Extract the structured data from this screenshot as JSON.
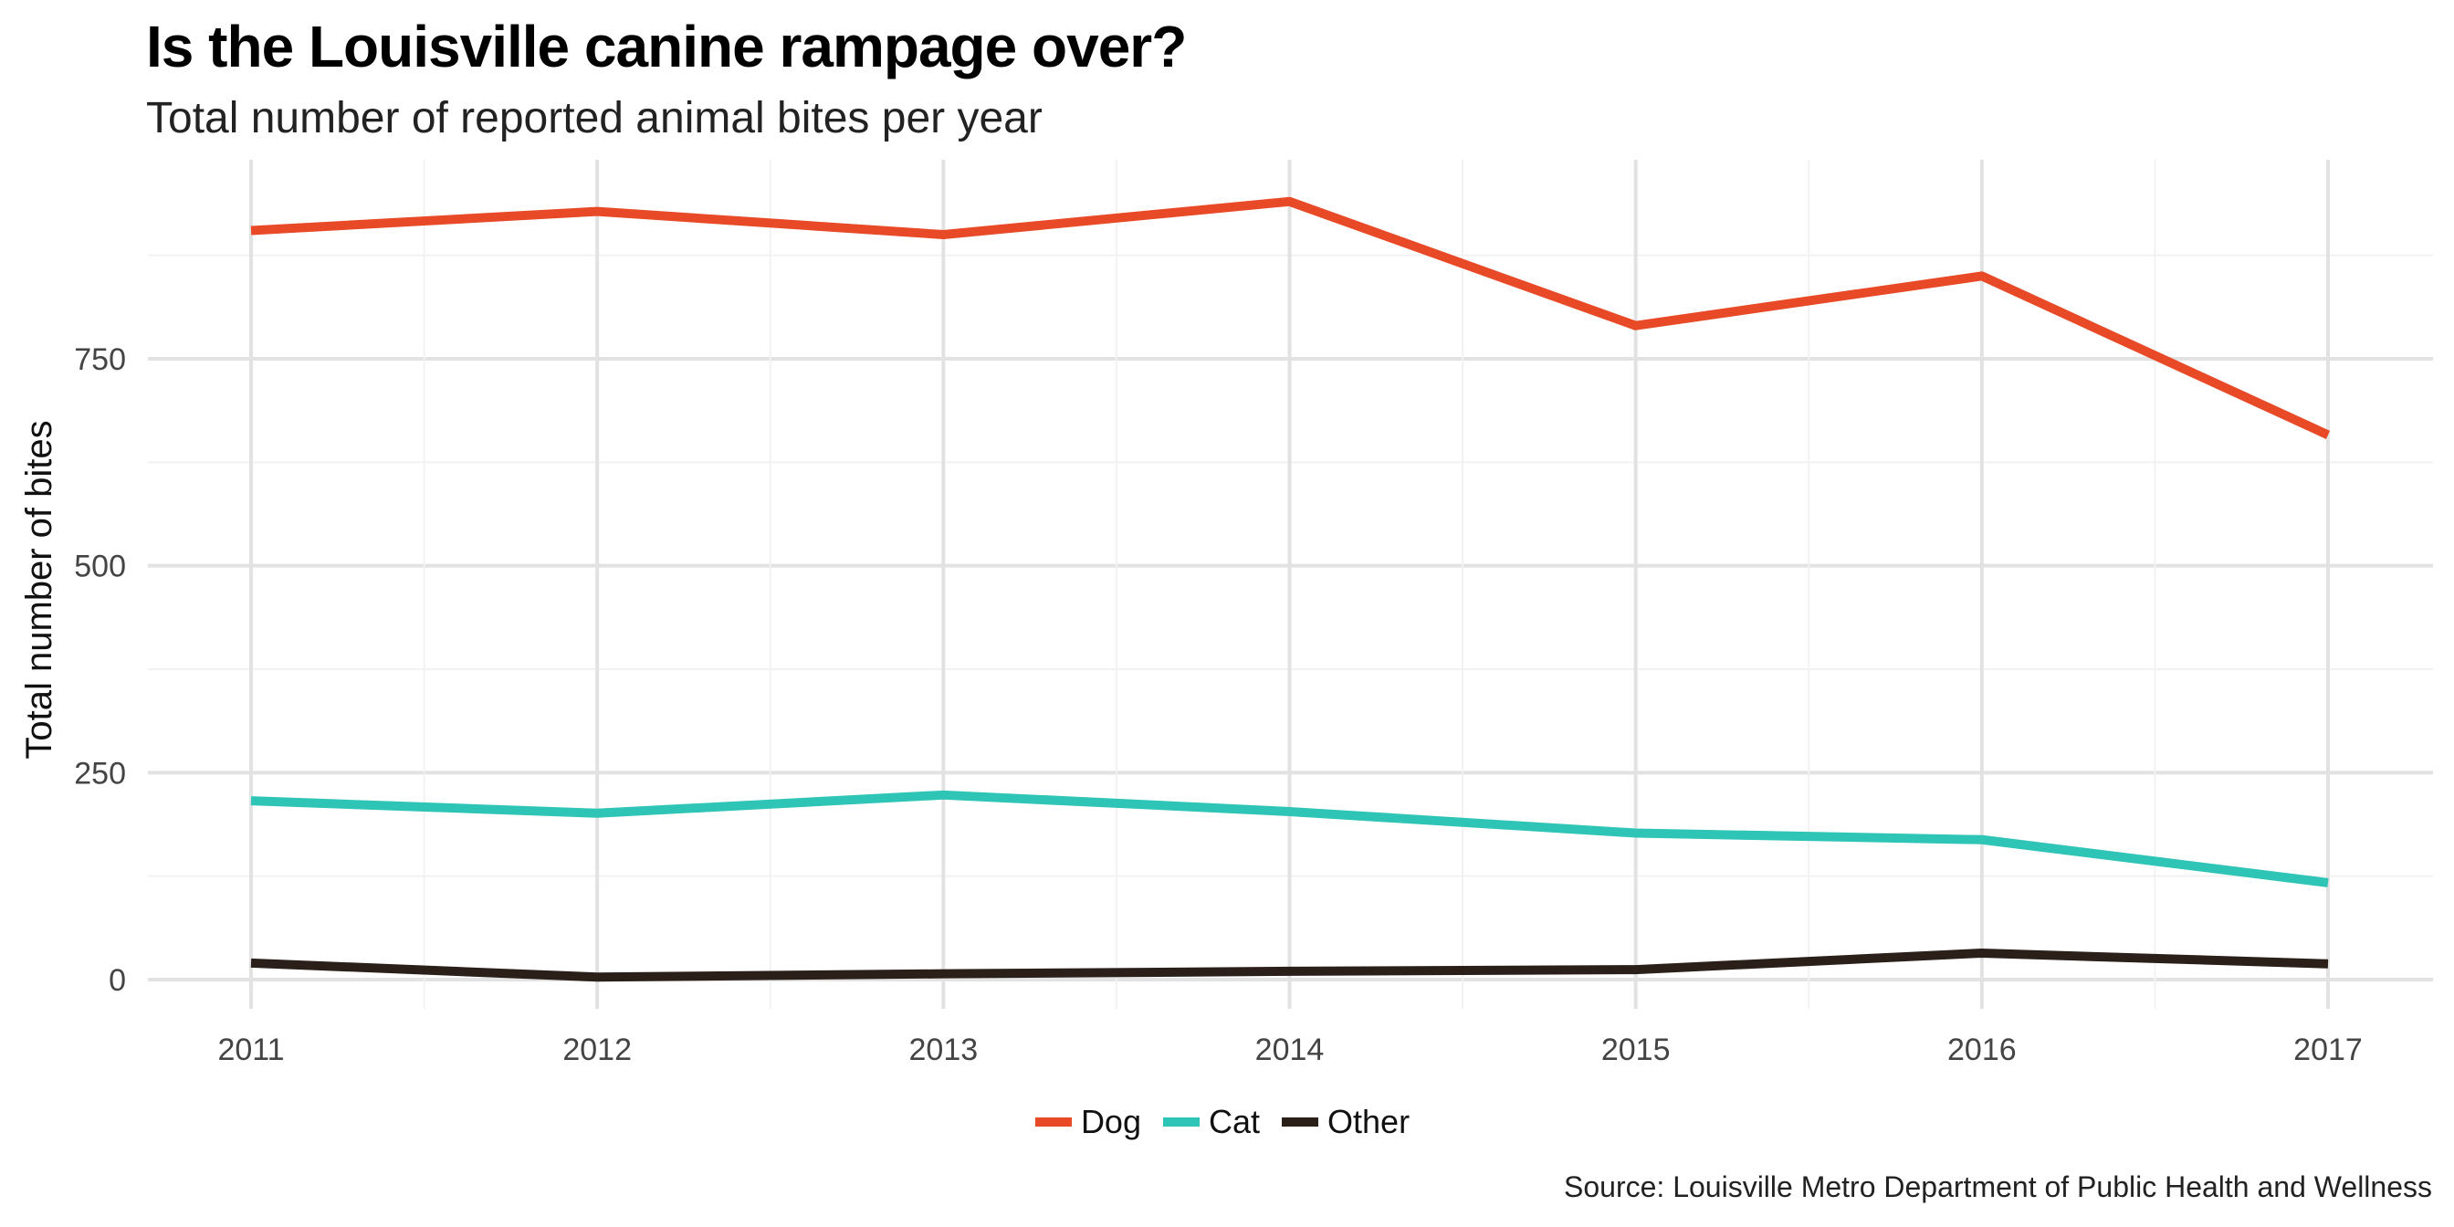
{
  "chart_data": {
    "type": "line",
    "title": "Is the Louisville canine rampage over?",
    "subtitle": "Total number of reported animal bites per year",
    "xlabel": "",
    "ylabel": "Total number of bites",
    "caption": "Source: Louisville Metro Department of Public Health and Wellness",
    "x": [
      2011,
      2012,
      2013,
      2014,
      2015,
      2016,
      2017
    ],
    "x_tick_labels": [
      "2011",
      "2012",
      "2013",
      "2014",
      "2015",
      "2016",
      "2017"
    ],
    "yticks": [
      0,
      250,
      500,
      750
    ],
    "y_tick_labels": [
      "0",
      "250",
      "500",
      "750"
    ],
    "ylim": [
      -20,
      990
    ],
    "grid": true,
    "legend_position": "bottom",
    "series": [
      {
        "name": "Dog",
        "color": "#E84A27",
        "values": [
          905,
          928,
          900,
          940,
          790,
          850,
          658
        ]
      },
      {
        "name": "Cat",
        "color": "#2EC4B6",
        "values": [
          216,
          201,
          223,
          203,
          177,
          169,
          117
        ]
      },
      {
        "name": "Other",
        "color": "#2B1F1A",
        "values": [
          20,
          3,
          7,
          10,
          12,
          32,
          19
        ]
      }
    ]
  }
}
